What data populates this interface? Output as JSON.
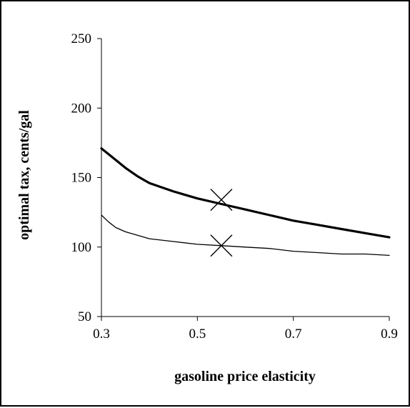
{
  "chart_data": {
    "type": "line",
    "title": "",
    "xlabel": "gasoline price elasticity",
    "ylabel": "optimal tax, cents/gal",
    "xlim": [
      0.3,
      0.9
    ],
    "ylim": [
      50,
      250
    ],
    "xticks": [
      0.3,
      0.5,
      0.7,
      0.9
    ],
    "xtick_labels": [
      "0.3",
      "0.5",
      "0.7",
      "0.9"
    ],
    "yticks": [
      50,
      100,
      150,
      200,
      250
    ],
    "ytick_labels": [
      "50",
      "100",
      "150",
      "200",
      "250"
    ],
    "grid": false,
    "legend": "none",
    "series": [
      {
        "style": "thick",
        "color": "#000000",
        "x": [
          0.3,
          0.325,
          0.35,
          0.375,
          0.4,
          0.45,
          0.5,
          0.55,
          0.6,
          0.65,
          0.7,
          0.75,
          0.8,
          0.85,
          0.9
        ],
        "y": [
          171,
          164,
          157,
          151,
          146,
          140,
          135,
          131,
          127,
          123,
          119,
          116,
          113,
          110,
          107
        ]
      },
      {
        "style": "thin",
        "color": "#000000",
        "x": [
          0.3,
          0.315,
          0.33,
          0.35,
          0.37,
          0.4,
          0.45,
          0.5,
          0.55,
          0.6,
          0.65,
          0.7,
          0.75,
          0.8,
          0.85,
          0.9
        ],
        "y": [
          123,
          118,
          114,
          111,
          109,
          106,
          104,
          102,
          101,
          100,
          99,
          97,
          96,
          95,
          95,
          94
        ]
      }
    ],
    "markers": [
      {
        "shape": "x",
        "x": 0.55,
        "y": 134
      },
      {
        "shape": "x",
        "x": 0.55,
        "y": 101
      }
    ]
  }
}
